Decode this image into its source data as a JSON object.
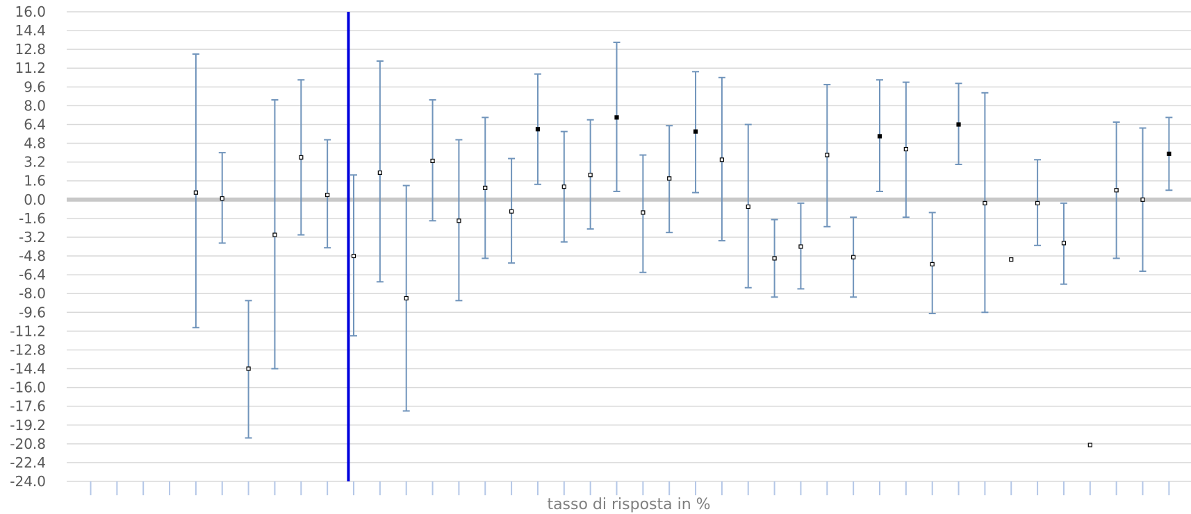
{
  "chart_data": {
    "type": "scatter",
    "title": "",
    "xlabel": "tasso di risposta in %",
    "ylabel": "",
    "ylim": [
      -24.0,
      16.0
    ],
    "y_ticks": [
      "16.0",
      "14.4",
      "12.8",
      "11.2",
      "9.6",
      "8.0",
      "6.4",
      "4.8",
      "3.2",
      "1.6",
      "0.0",
      "-1.6",
      "-3.2",
      "-4.8",
      "-6.4",
      "-8.0",
      "-9.6",
      "-11.2",
      "-12.8",
      "-14.4",
      "-16.0",
      "-17.6",
      "-19.2",
      "-20.8",
      "-22.4",
      "-24.0"
    ],
    "x_count": 42,
    "grid": true,
    "zero_line": 0.0,
    "reference_line_after_index": 10,
    "colors": {
      "gridline": "#d9d9d9",
      "zero_line": "#c8c8c8",
      "error_bar": "#7094bb",
      "reference_line": "#0000dd",
      "marker_filled": "#000000",
      "marker_open_fill": "#ffffff",
      "tick_mark": "#b4c7e7",
      "axis_title": "#7f7f7f"
    },
    "points": [
      {
        "i": 5,
        "y": 0.6,
        "low": -10.9,
        "high": 12.4
      },
      {
        "i": 6,
        "y": 0.1,
        "low": -3.7,
        "high": 4.0
      },
      {
        "i": 7,
        "y": -14.4,
        "low": -20.3,
        "high": -8.6
      },
      {
        "i": 8,
        "y": -3.0,
        "low": -14.4,
        "high": 8.5
      },
      {
        "i": 9,
        "y": 3.6,
        "low": -3.0,
        "high": 10.2
      },
      {
        "i": 10,
        "y": 0.4,
        "low": -4.1,
        "high": 5.1
      },
      {
        "i": 11,
        "y": -4.8,
        "low": -11.6,
        "high": 2.1
      },
      {
        "i": 12,
        "y": 2.3,
        "low": -7.0,
        "high": 11.8
      },
      {
        "i": 13,
        "y": -8.4,
        "low": -18.0,
        "high": 1.2
      },
      {
        "i": 14,
        "y": 3.3,
        "low": -1.8,
        "high": 8.5
      },
      {
        "i": 15,
        "y": -1.8,
        "low": -8.6,
        "high": 5.1
      },
      {
        "i": 16,
        "y": 1.0,
        "low": -5.0,
        "high": 7.0
      },
      {
        "i": 17,
        "y": -1.0,
        "low": -5.4,
        "high": 3.5
      },
      {
        "i": 18,
        "y": 6.0,
        "low": 1.3,
        "high": 10.7
      },
      {
        "i": 19,
        "y": 1.1,
        "low": -3.6,
        "high": 5.8
      },
      {
        "i": 20,
        "y": 2.1,
        "low": -2.5,
        "high": 6.8
      },
      {
        "i": 21,
        "y": 7.0,
        "low": 0.7,
        "high": 13.4
      },
      {
        "i": 22,
        "y": -1.1,
        "low": -6.2,
        "high": 3.8
      },
      {
        "i": 23,
        "y": 1.8,
        "low": -2.8,
        "high": 6.3
      },
      {
        "i": 24,
        "y": 5.8,
        "low": 0.6,
        "high": 10.9
      },
      {
        "i": 25,
        "y": 3.4,
        "low": -3.5,
        "high": 10.4
      },
      {
        "i": 26,
        "y": -0.6,
        "low": -7.5,
        "high": 6.4
      },
      {
        "i": 27,
        "y": -5.0,
        "low": -8.3,
        "high": -1.7
      },
      {
        "i": 28,
        "y": -4.0,
        "low": -7.6,
        "high": -0.3
      },
      {
        "i": 29,
        "y": 3.8,
        "low": -2.3,
        "high": 9.8
      },
      {
        "i": 30,
        "y": -4.9,
        "low": -8.3,
        "high": -1.5
      },
      {
        "i": 31,
        "y": 5.4,
        "low": 0.7,
        "high": 10.2
      },
      {
        "i": 32,
        "y": 4.3,
        "low": -1.5,
        "high": 10.0
      },
      {
        "i": 33,
        "y": -5.5,
        "low": -9.7,
        "high": -1.1
      },
      {
        "i": 34,
        "y": 6.4,
        "low": 3.0,
        "high": 9.9
      },
      {
        "i": 35,
        "y": -0.3,
        "low": -9.6,
        "high": 9.1
      },
      {
        "i": 36,
        "y": -5.1,
        "low": null,
        "high": null
      },
      {
        "i": 37,
        "y": -0.3,
        "low": -3.9,
        "high": 3.4
      },
      {
        "i": 38,
        "y": -3.7,
        "low": -7.2,
        "high": -0.3
      },
      {
        "i": 39,
        "y": -20.9,
        "low": null,
        "high": null
      },
      {
        "i": 40,
        "y": 0.8,
        "low": -5.0,
        "high": 6.6
      },
      {
        "i": 41,
        "y": 0.0,
        "low": -6.1,
        "high": 6.1
      },
      {
        "i": 42,
        "y": 3.9,
        "low": 0.8,
        "high": 7.0
      }
    ]
  }
}
